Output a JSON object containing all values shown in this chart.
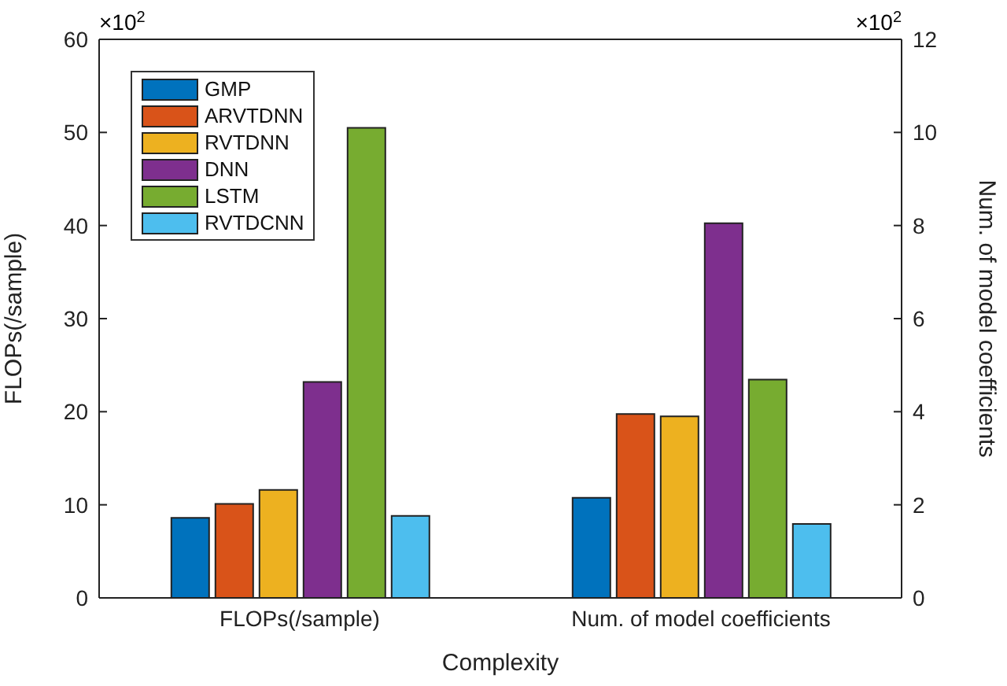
{
  "chart_data": {
    "type": "bar",
    "xlabel": "Complexity",
    "ylabel": "FLOPs(/sample)",
    "y2label": "Num. of model coefficients",
    "categories": [
      "FLOPs(/sample)",
      "Num. of model coefficients"
    ],
    "series": [
      {
        "name": "GMP",
        "color": "#0072bd",
        "values": [
          8.6,
          null
        ]
      },
      {
        "name": "ARVTDNN",
        "color": "#d95319",
        "values": [
          10.1,
          null
        ]
      },
      {
        "name": "RVTDNN",
        "color": "#edb120",
        "values": [
          11.6,
          null
        ]
      },
      {
        "name": "DNN",
        "color": "#7e2f8e",
        "values": [
          23.2,
          null
        ]
      },
      {
        "name": "LSTM",
        "color": "#77ac30",
        "values": [
          50.5,
          null
        ]
      },
      {
        "name": "RVTDCNN",
        "color": "#4dbeee",
        "values": [
          8.8,
          null
        ]
      },
      {
        "color": "#0072bd",
        "axis": "y2",
        "values": [
          null,
          2.15
        ]
      },
      {
        "color": "#d95319",
        "axis": "y2",
        "values": [
          null,
          3.95
        ]
      },
      {
        "color": "#edb120",
        "axis": "y2",
        "values": [
          null,
          3.9
        ]
      },
      {
        "color": "#7e2f8e",
        "axis": "y2",
        "values": [
          null,
          8.05
        ]
      },
      {
        "color": "#77ac30",
        "axis": "y2",
        "values": [
          null,
          4.69
        ]
      },
      {
        "color": "#4dbeee",
        "axis": "y2",
        "values": [
          null,
          1.59
        ]
      }
    ],
    "ylim": [
      0,
      60
    ],
    "yticks": [
      0,
      10,
      20,
      30,
      40,
      50,
      60
    ],
    "y2lim": [
      0,
      12
    ],
    "y2ticks": [
      0,
      2,
      4,
      6,
      8,
      10,
      12
    ],
    "annotations": [
      "×10$^{2}$",
      "×10$^{2}$"
    ],
    "legend": "top left",
    "grid": false
  }
}
